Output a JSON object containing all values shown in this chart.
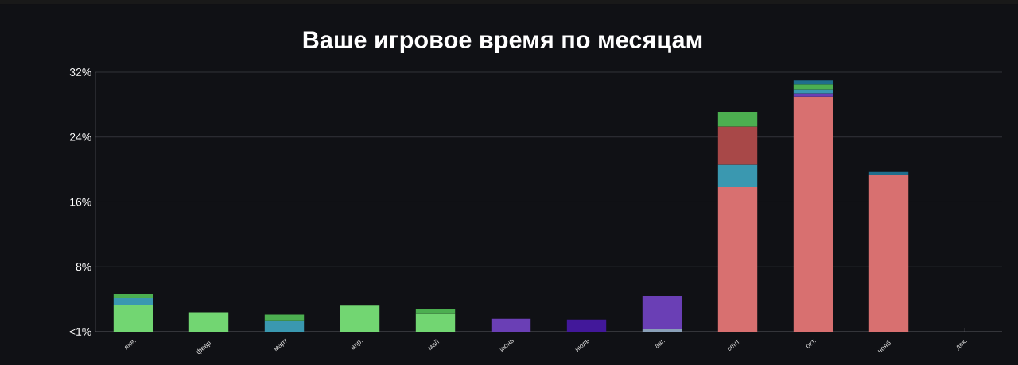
{
  "chart_data": {
    "type": "bar",
    "stacked": true,
    "title": "Ваше игровое время по месяцам",
    "categories": [
      "янв.",
      "февр.",
      "март",
      "апр.",
      "май",
      "июнь",
      "июль",
      "авг.",
      "сент.",
      "окт.",
      "нояб.",
      "дек."
    ],
    "series": [
      {
        "color": "#8aa0b8",
        "values": [
          null,
          null,
          null,
          null,
          null,
          null,
          null,
          0.3,
          null,
          null,
          null,
          null
        ]
      },
      {
        "color": "#d87070",
        "values": [
          null,
          null,
          null,
          null,
          null,
          null,
          null,
          null,
          17.8,
          29.0,
          19.3,
          null
        ]
      },
      {
        "color": "#72d672",
        "values": [
          3.3,
          2.4,
          null,
          3.2,
          2.2,
          null,
          null,
          null,
          null,
          null,
          null,
          null
        ]
      },
      {
        "color": "#42189a",
        "values": [
          null,
          null,
          null,
          null,
          null,
          null,
          1.5,
          null,
          null,
          null,
          null,
          null
        ]
      },
      {
        "color": "#6a3fb5",
        "values": [
          null,
          null,
          null,
          null,
          null,
          1.6,
          null,
          4.1,
          null,
          0.4,
          null,
          null
        ]
      },
      {
        "color": "#3a98b0",
        "values": [
          0.9,
          null,
          1.4,
          null,
          null,
          null,
          null,
          null,
          2.8,
          0.5,
          null,
          null
        ]
      },
      {
        "color": "#a84848",
        "values": [
          null,
          null,
          null,
          null,
          null,
          null,
          null,
          null,
          4.7,
          null,
          null,
          null
        ]
      },
      {
        "color": "#4caf50",
        "values": [
          0.4,
          null,
          0.7,
          null,
          0.6,
          null,
          null,
          null,
          1.8,
          0.6,
          null,
          null
        ]
      },
      {
        "color": "#1f6e8c",
        "values": [
          null,
          null,
          null,
          null,
          null,
          null,
          null,
          null,
          null,
          0.5,
          0.4,
          null
        ]
      }
    ],
    "ylim": [
      0,
      32
    ],
    "yticks": [
      {
        "value": 0,
        "label": "<1%"
      },
      {
        "value": 8,
        "label": "8%"
      },
      {
        "value": 16,
        "label": "16%"
      },
      {
        "value": 24,
        "label": "24%"
      },
      {
        "value": 32,
        "label": "32%"
      }
    ],
    "grid": "y"
  }
}
